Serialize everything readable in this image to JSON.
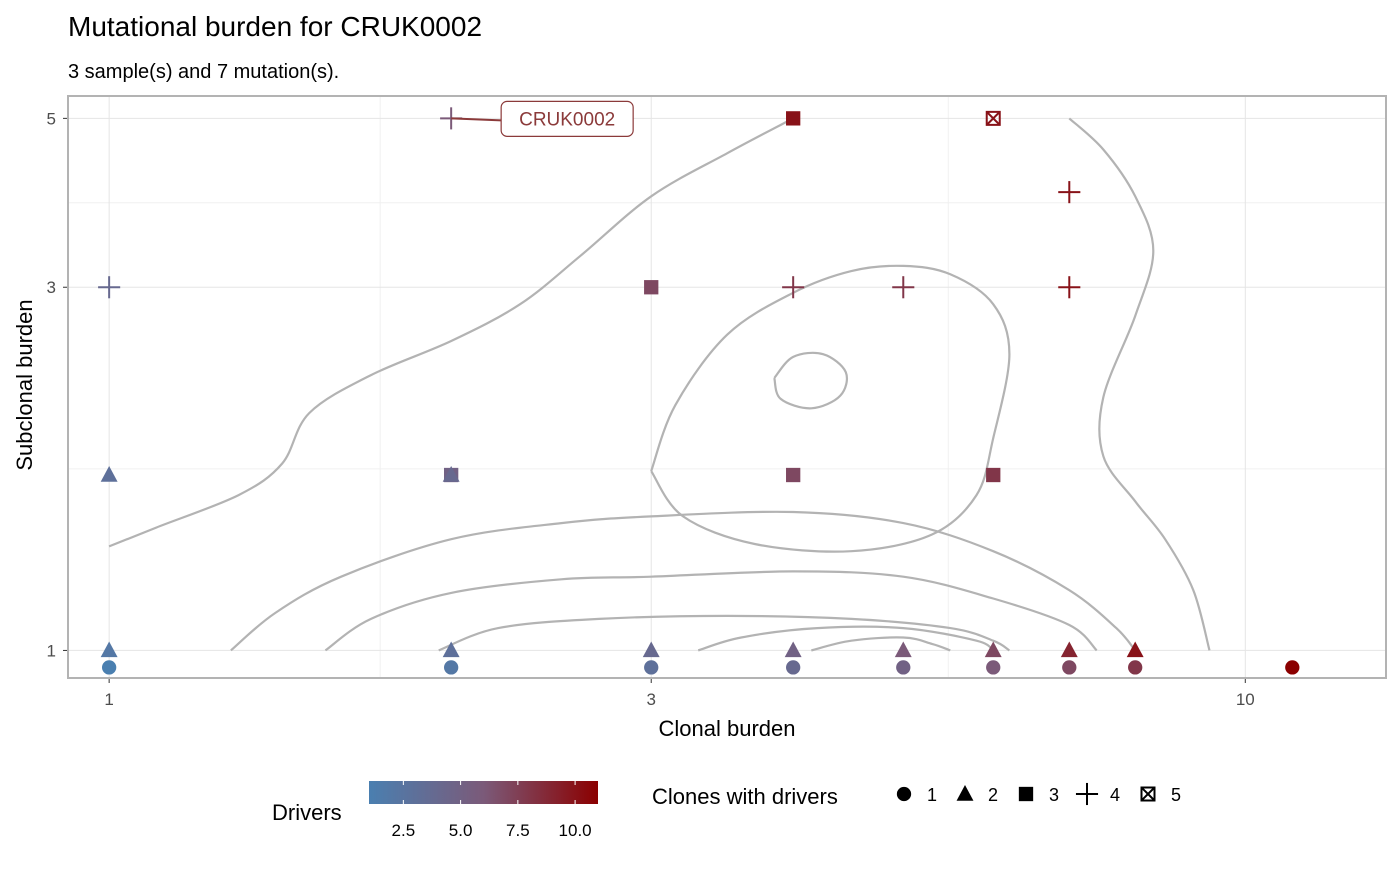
{
  "chart_data": {
    "type": "scatter",
    "title": "Mutational burden for  CRUK0002",
    "subtitle": "3 sample(s) and 7 mutation(s).",
    "xlabel": "Clonal burden",
    "ylabel": "Subclonal burden",
    "x_scale": "log10",
    "y_scale": "log10",
    "xlim": [
      0.92,
      13.3
    ],
    "ylim": [
      0.92,
      5.35
    ],
    "x_ticks": [
      1,
      3,
      10
    ],
    "x_tick_labels": [
      "1",
      "3",
      "10"
    ],
    "y_ticks": [
      1,
      3,
      5
    ],
    "y_tick_labels": [
      "1",
      "3",
      "5"
    ],
    "grid": true,
    "colors": {
      "low": "#4A7FB0",
      "mid": "#7B5A79",
      "high": "#8B0000",
      "contour": "#B3B3B3",
      "panel_border": "#B3B3B3",
      "grid": "#E5E5E5",
      "label": "#8B3A3A"
    },
    "points": [
      {
        "x": 1,
        "y": 3,
        "shape": 4,
        "drivers": 4
      },
      {
        "x": 1,
        "y": 1.7,
        "shape": 2,
        "drivers": 3
      },
      {
        "x": 1,
        "y": 1,
        "shape": 2,
        "drivers": 2
      },
      {
        "x": 1,
        "y": 0.95,
        "shape": 1,
        "drivers": 1
      },
      {
        "x": 2,
        "y": 5,
        "shape": 4,
        "drivers": 6
      },
      {
        "x": 2,
        "y": 1.7,
        "shape": 3,
        "drivers": 5
      },
      {
        "x": 2,
        "y": 1.7,
        "shape": 2,
        "drivers": 4
      },
      {
        "x": 2,
        "y": 1,
        "shape": 2,
        "drivers": 3
      },
      {
        "x": 2,
        "y": 0.95,
        "shape": 1,
        "drivers": 2
      },
      {
        "x": 3,
        "y": 3,
        "shape": 3,
        "drivers": 7
      },
      {
        "x": 3,
        "y": 1,
        "shape": 2,
        "drivers": 4
      },
      {
        "x": 3,
        "y": 0.95,
        "shape": 1,
        "drivers": 3
      },
      {
        "x": 4,
        "y": 5,
        "shape": 3,
        "drivers": 10
      },
      {
        "x": 4,
        "y": 3,
        "shape": 4,
        "drivers": 8
      },
      {
        "x": 4,
        "y": 1.7,
        "shape": 3,
        "drivers": 7
      },
      {
        "x": 4,
        "y": 1,
        "shape": 2,
        "drivers": 5
      },
      {
        "x": 4,
        "y": 0.95,
        "shape": 1,
        "drivers": 4
      },
      {
        "x": 5,
        "y": 3,
        "shape": 4,
        "drivers": 8
      },
      {
        "x": 5,
        "y": 1,
        "shape": 2,
        "drivers": 6
      },
      {
        "x": 5,
        "y": 0.95,
        "shape": 1,
        "drivers": 5
      },
      {
        "x": 6,
        "y": 5,
        "shape": 5,
        "drivers": 10
      },
      {
        "x": 6,
        "y": 1.7,
        "shape": 3,
        "drivers": 8
      },
      {
        "x": 6,
        "y": 1,
        "shape": 2,
        "drivers": 7
      },
      {
        "x": 6,
        "y": 0.95,
        "shape": 1,
        "drivers": 6
      },
      {
        "x": 7,
        "y": 4,
        "shape": 4,
        "drivers": 10
      },
      {
        "x": 7,
        "y": 3,
        "shape": 4,
        "drivers": 10
      },
      {
        "x": 7,
        "y": 1,
        "shape": 2,
        "drivers": 9
      },
      {
        "x": 7,
        "y": 0.95,
        "shape": 1,
        "drivers": 7
      },
      {
        "x": 8,
        "y": 1,
        "shape": 2,
        "drivers": 10
      },
      {
        "x": 8,
        "y": 0.95,
        "shape": 1,
        "drivers": 8
      },
      {
        "x": 11,
        "y": 0.95,
        "shape": 1,
        "drivers": 11
      }
    ],
    "annotation": {
      "text": "CRUK0002",
      "x": 2,
      "y": 5
    },
    "contours": [
      [
        [
          1.0,
          1.37
        ],
        [
          1.1,
          1.45
        ],
        [
          1.3,
          1.6
        ],
        [
          1.42,
          1.76
        ],
        [
          1.5,
          2.05
        ],
        [
          1.7,
          2.3
        ],
        [
          2.0,
          2.55
        ],
        [
          2.3,
          2.85
        ],
        [
          2.6,
          3.3
        ],
        [
          3.0,
          3.95
        ],
        [
          3.5,
          4.5
        ],
        [
          4.0,
          5.0
        ]
      ],
      [
        [
          7.0,
          5.0
        ],
        [
          7.5,
          4.55
        ],
        [
          8.0,
          3.95
        ],
        [
          8.3,
          3.35
        ],
        [
          8.0,
          2.75
        ],
        [
          7.5,
          2.15
        ],
        [
          7.5,
          1.8
        ],
        [
          8.0,
          1.57
        ],
        [
          8.5,
          1.4
        ],
        [
          9.0,
          1.2
        ],
        [
          9.3,
          1.0
        ]
      ],
      [
        [
          1.28,
          1.0
        ],
        [
          1.4,
          1.12
        ],
        [
          1.6,
          1.25
        ],
        [
          2.0,
          1.4
        ],
        [
          2.5,
          1.47
        ],
        [
          3.0,
          1.5
        ],
        [
          4.0,
          1.52
        ],
        [
          5.0,
          1.47
        ],
        [
          6.0,
          1.35
        ],
        [
          7.0,
          1.2
        ],
        [
          7.7,
          1.07
        ],
        [
          8.0,
          1.0
        ]
      ],
      [
        [
          1.55,
          1.0
        ],
        [
          1.7,
          1.1
        ],
        [
          2.0,
          1.19
        ],
        [
          2.5,
          1.24
        ],
        [
          3.0,
          1.25
        ],
        [
          4.0,
          1.27
        ],
        [
          5.0,
          1.25
        ],
        [
          6.0,
          1.17
        ],
        [
          7.0,
          1.08
        ],
        [
          7.4,
          1.0
        ]
      ],
      [
        [
          1.95,
          1.0
        ],
        [
          2.2,
          1.07
        ],
        [
          2.7,
          1.1
        ],
        [
          3.5,
          1.11
        ],
        [
          4.5,
          1.1
        ],
        [
          5.5,
          1.07
        ],
        [
          6.0,
          1.03
        ],
        [
          6.2,
          1.0
        ]
      ],
      [
        [
          3.3,
          1.0
        ],
        [
          3.6,
          1.04
        ],
        [
          4.2,
          1.07
        ],
        [
          5.0,
          1.07
        ],
        [
          5.8,
          1.03
        ],
        [
          6.0,
          1.0
        ]
      ],
      [
        [
          4.15,
          1.0
        ],
        [
          4.5,
          1.03
        ],
        [
          5.0,
          1.04
        ],
        [
          5.3,
          1.02
        ],
        [
          5.5,
          1.0
        ]
      ],
      [
        [
          3.0,
          1.72
        ],
        [
          3.15,
          2.1
        ],
        [
          3.5,
          2.6
        ],
        [
          4.0,
          2.95
        ],
        [
          4.5,
          3.15
        ],
        [
          5.0,
          3.2
        ],
        [
          5.5,
          3.12
        ],
        [
          6.0,
          2.85
        ],
        [
          6.2,
          2.45
        ],
        [
          6.0,
          1.9
        ],
        [
          5.8,
          1.6
        ],
        [
          5.3,
          1.42
        ],
        [
          4.5,
          1.35
        ],
        [
          3.7,
          1.38
        ],
        [
          3.2,
          1.5
        ],
        [
          3.0,
          1.72
        ]
      ],
      [
        [
          3.85,
          2.28
        ],
        [
          4.0,
          2.43
        ],
        [
          4.25,
          2.45
        ],
        [
          4.45,
          2.32
        ],
        [
          4.4,
          2.16
        ],
        [
          4.15,
          2.08
        ],
        [
          3.9,
          2.14
        ],
        [
          3.85,
          2.28
        ]
      ]
    ],
    "legend": {
      "position": "bottom",
      "colorbar_title": "Drivers",
      "colorbar_range": [
        1,
        11
      ],
      "colorbar_ticks": [
        2.5,
        5.0,
        7.5,
        10.0
      ],
      "colorbar_tick_labels": [
        "2.5",
        "5.0",
        "7.5",
        "10.0"
      ],
      "shape_title": "Clones with drivers",
      "shape_entries": [
        {
          "label": "1",
          "shape": 1
        },
        {
          "label": "2",
          "shape": 2
        },
        {
          "label": "3",
          "shape": 3
        },
        {
          "label": "4",
          "shape": 4
        },
        {
          "label": "5",
          "shape": 5
        }
      ]
    }
  }
}
